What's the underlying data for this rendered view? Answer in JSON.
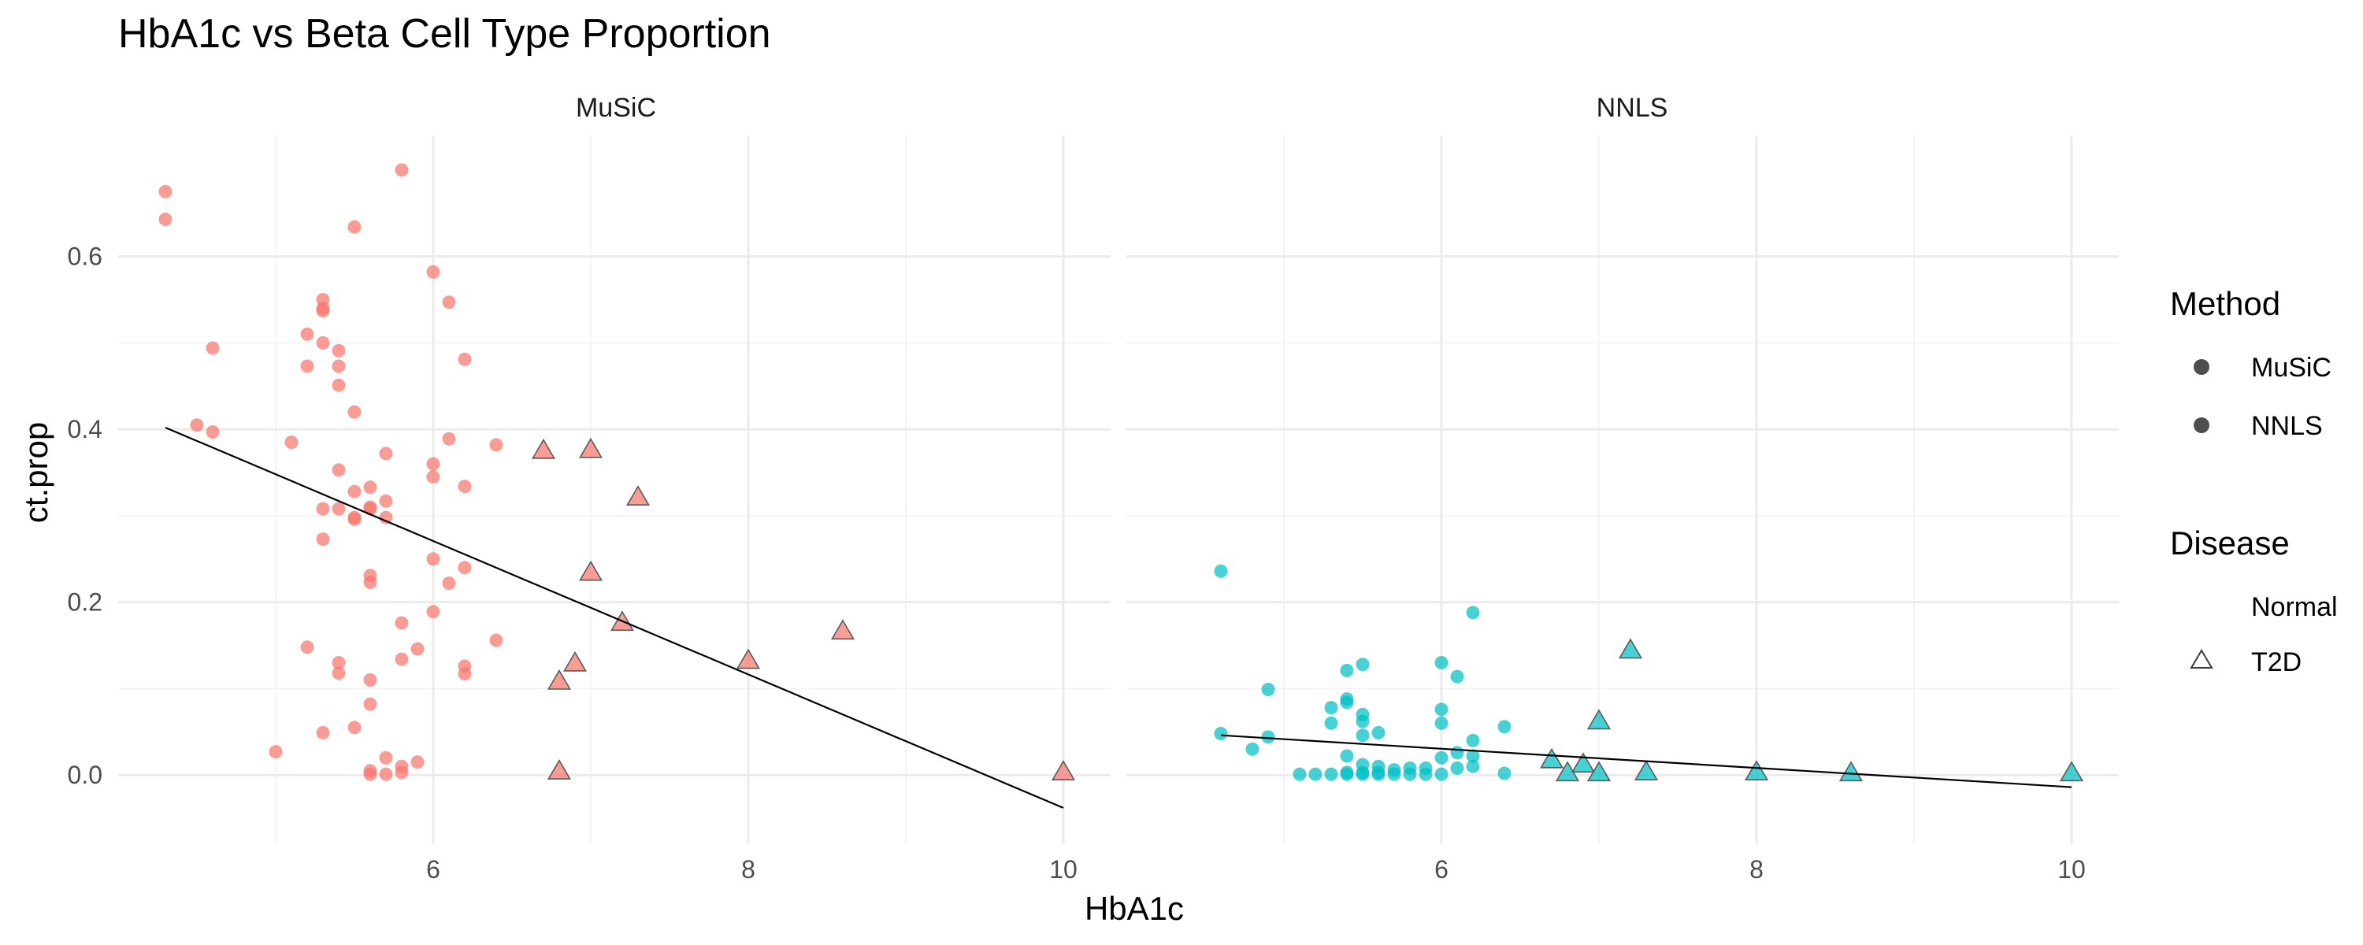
{
  "chart_data": {
    "type": "scatter",
    "title": "HbA1c vs Beta Cell Type Proportion",
    "xlabel": "HbA1c",
    "ylabel": "ct.prop",
    "xlim": [
      4.0,
      10.3
    ],
    "ylim": [
      -0.08,
      0.74
    ],
    "x_ticks": [
      6,
      8,
      10
    ],
    "x_minor_ticks": [
      5,
      7,
      9
    ],
    "y_ticks": [
      0.0,
      0.2,
      0.4,
      0.6
    ],
    "y_tick_labels": [
      "0.0",
      "0.2",
      "0.4",
      "0.6"
    ],
    "grid": true,
    "legend_position": "right",
    "facets": [
      {
        "strip_label": "MuSiC",
        "color": "#F8766D",
        "normal_points": [
          [
            4.3,
            0.675
          ],
          [
            4.3,
            0.643
          ],
          [
            4.6,
            0.494
          ],
          [
            4.6,
            0.397
          ],
          [
            4.5,
            0.405
          ],
          [
            5.0,
            0.027
          ],
          [
            5.1,
            0.385
          ],
          [
            5.2,
            0.148
          ],
          [
            5.2,
            0.51
          ],
          [
            5.2,
            0.473
          ],
          [
            5.3,
            0.55
          ],
          [
            5.3,
            0.54
          ],
          [
            5.3,
            0.537
          ],
          [
            5.3,
            0.5
          ],
          [
            5.3,
            0.308
          ],
          [
            5.3,
            0.273
          ],
          [
            5.3,
            0.049
          ],
          [
            5.4,
            0.491
          ],
          [
            5.4,
            0.473
          ],
          [
            5.4,
            0.451
          ],
          [
            5.4,
            0.353
          ],
          [
            5.4,
            0.308
          ],
          [
            5.4,
            0.13
          ],
          [
            5.4,
            0.118
          ],
          [
            5.5,
            0.634
          ],
          [
            5.5,
            0.42
          ],
          [
            5.5,
            0.328
          ],
          [
            5.5,
            0.298
          ],
          [
            5.5,
            0.296
          ],
          [
            5.5,
            0.055
          ],
          [
            5.6,
            0.333
          ],
          [
            5.6,
            0.31
          ],
          [
            5.6,
            0.308
          ],
          [
            5.6,
            0.231
          ],
          [
            5.6,
            0.223
          ],
          [
            5.6,
            0.11
          ],
          [
            5.6,
            0.082
          ],
          [
            5.6,
            0.005
          ],
          [
            5.6,
            0.001
          ],
          [
            5.7,
            0.372
          ],
          [
            5.7,
            0.317
          ],
          [
            5.7,
            0.298
          ],
          [
            5.7,
            0.02
          ],
          [
            5.7,
            0.001
          ],
          [
            5.8,
            0.7
          ],
          [
            5.8,
            0.176
          ],
          [
            5.8,
            0.134
          ],
          [
            5.8,
            0.01
          ],
          [
            5.8,
            0.003
          ],
          [
            5.9,
            0.146
          ],
          [
            5.9,
            0.015
          ],
          [
            6.0,
            0.582
          ],
          [
            6.0,
            0.36
          ],
          [
            6.0,
            0.345
          ],
          [
            6.0,
            0.25
          ],
          [
            6.0,
            0.189
          ],
          [
            6.1,
            0.547
          ],
          [
            6.1,
            0.389
          ],
          [
            6.1,
            0.222
          ],
          [
            6.2,
            0.481
          ],
          [
            6.2,
            0.334
          ],
          [
            6.2,
            0.24
          ],
          [
            6.2,
            0.126
          ],
          [
            6.2,
            0.117
          ],
          [
            6.4,
            0.382
          ],
          [
            6.4,
            0.156
          ]
        ],
        "t2d_points": [
          [
            6.7,
            0.376
          ],
          [
            7.0,
            0.377
          ],
          [
            7.3,
            0.322
          ],
          [
            7.0,
            0.235
          ],
          [
            7.2,
            0.177
          ],
          [
            8.6,
            0.167
          ],
          [
            8.0,
            0.133
          ],
          [
            6.9,
            0.13
          ],
          [
            6.8,
            0.109
          ],
          [
            6.8,
            0.005
          ],
          [
            10.0,
            0.004
          ]
        ],
        "fit_line": [
          [
            4.3,
            0.402
          ],
          [
            10.0,
            -0.038
          ]
        ]
      },
      {
        "strip_label": "NNLS",
        "color": "#00BFC4",
        "normal_points": [
          [
            4.6,
            0.236
          ],
          [
            4.6,
            0.048
          ],
          [
            4.8,
            0.03
          ],
          [
            4.9,
            0.099
          ],
          [
            4.9,
            0.044
          ],
          [
            5.1,
            0.001
          ],
          [
            5.2,
            0.001
          ],
          [
            5.3,
            0.078
          ],
          [
            5.3,
            0.06
          ],
          [
            5.3,
            0.001
          ],
          [
            5.4,
            0.121
          ],
          [
            5.4,
            0.088
          ],
          [
            5.4,
            0.084
          ],
          [
            5.4,
            0.022
          ],
          [
            5.4,
            0.003
          ],
          [
            5.4,
            0.001
          ],
          [
            5.5,
            0.128
          ],
          [
            5.5,
            0.07
          ],
          [
            5.5,
            0.062
          ],
          [
            5.5,
            0.046
          ],
          [
            5.5,
            0.012
          ],
          [
            5.5,
            0.003
          ],
          [
            5.5,
            0.001
          ],
          [
            5.6,
            0.049
          ],
          [
            5.6,
            0.01
          ],
          [
            5.6,
            0.003
          ],
          [
            5.6,
            0.001
          ],
          [
            5.7,
            0.006
          ],
          [
            5.7,
            0.001
          ],
          [
            5.8,
            0.008
          ],
          [
            5.8,
            0.001
          ],
          [
            5.9,
            0.008
          ],
          [
            5.9,
            0.001
          ],
          [
            6.0,
            0.13
          ],
          [
            6.0,
            0.076
          ],
          [
            6.0,
            0.06
          ],
          [
            6.0,
            0.02
          ],
          [
            6.0,
            0.001
          ],
          [
            6.1,
            0.114
          ],
          [
            6.1,
            0.026
          ],
          [
            6.1,
            0.008
          ],
          [
            6.2,
            0.188
          ],
          [
            6.2,
            0.04
          ],
          [
            6.2,
            0.022
          ],
          [
            6.2,
            0.01
          ],
          [
            6.4,
            0.056
          ],
          [
            6.4,
            0.002
          ]
        ],
        "t2d_points": [
          [
            7.2,
            0.145
          ],
          [
            7.0,
            0.063
          ],
          [
            6.7,
            0.018
          ],
          [
            6.9,
            0.013
          ],
          [
            6.8,
            0.003
          ],
          [
            7.0,
            0.003
          ],
          [
            7.3,
            0.004
          ],
          [
            8.0,
            0.004
          ],
          [
            8.6,
            0.003
          ],
          [
            10.0,
            0.003
          ]
        ],
        "fit_line": [
          [
            4.6,
            0.046
          ],
          [
            10.0,
            -0.014
          ]
        ]
      }
    ],
    "legend": {
      "method_title": "Method",
      "method_items": [
        "MuSiC",
        "NNLS"
      ],
      "disease_title": "Disease",
      "disease_items": [
        "Normal",
        "T2D"
      ]
    }
  }
}
